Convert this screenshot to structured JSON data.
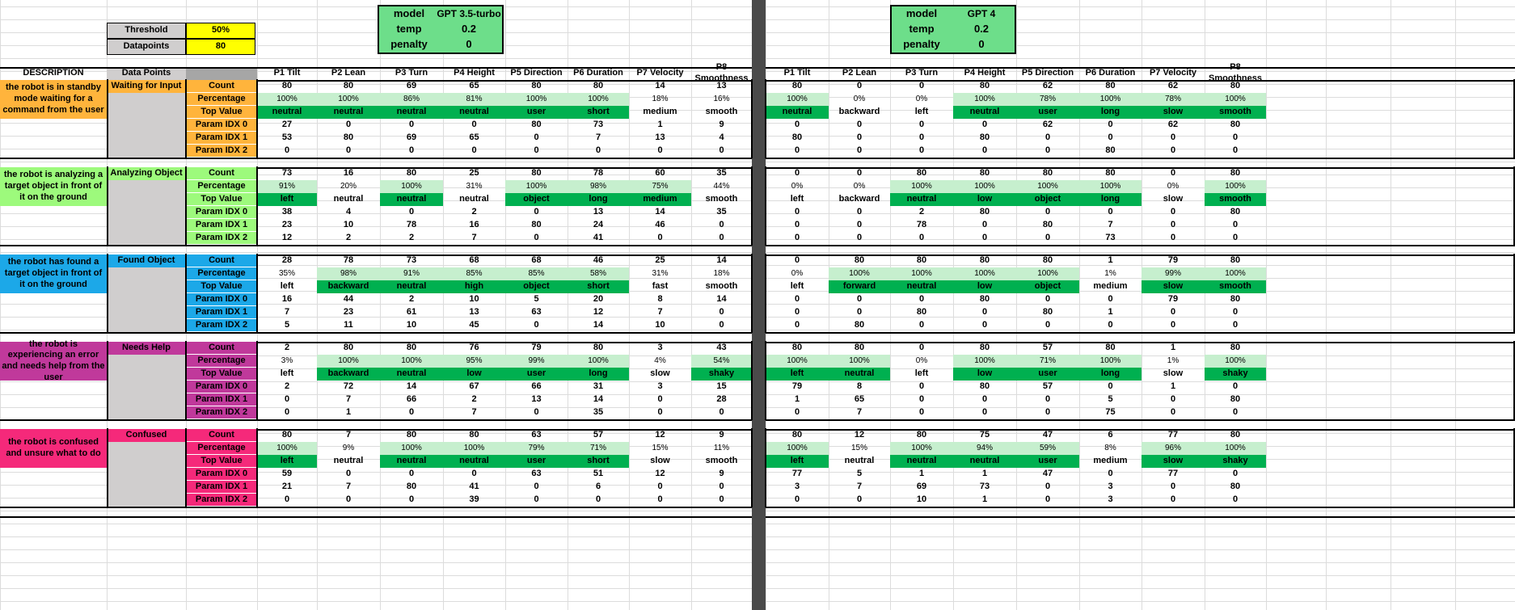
{
  "settings": {
    "threshold_label": "Threshold",
    "threshold_value": "50%",
    "datapoints_label": "Datapoints",
    "datapoints_value": "80"
  },
  "models": [
    {
      "model_label": "model",
      "model": "GPT 3.5-turbo",
      "temp_label": "temp",
      "temp": "0.2",
      "penalty_label": "penalty",
      "penalty": "0"
    },
    {
      "model_label": "model",
      "model": "GPT 4",
      "temp_label": "temp",
      "temp": "0.2",
      "penalty_label": "penalty",
      "penalty": "0"
    }
  ],
  "header": {
    "description": "DESCRIPTION",
    "data_points": "Data Points",
    "params": [
      "P1 Tilt",
      "P2 Lean",
      "P3 Turn",
      "P4 Height",
      "P5 Direction",
      "P6 Duration",
      "P7 Velocity",
      "P8 Smoothness"
    ]
  },
  "row_labels": [
    "Count",
    "Percentage",
    "Top Value",
    "Param IDX 0",
    "Param IDX 1",
    "Param IDX 2"
  ],
  "colors": {
    "light_green": "#c6efce",
    "dark_green": "#00b050",
    "model_green": "#6dde8a",
    "yellow": "#ffff00",
    "grey": "#d0cece",
    "separator": "#4a4a4a"
  },
  "states": [
    {
      "name": "Waiting for Input",
      "description": "the robot is in standby mode waiting for a command from the user",
      "color": "#ffb43c",
      "gpt35": {
        "count": [
          "80",
          "80",
          "69",
          "65",
          "80",
          "80",
          "14",
          "13"
        ],
        "pct": [
          "100%",
          "100%",
          "86%",
          "81%",
          "100%",
          "100%",
          "18%",
          "16%"
        ],
        "top": [
          "neutral",
          "neutral",
          "neutral",
          "neutral",
          "user",
          "short",
          "medium",
          "smooth"
        ],
        "idx0": [
          "27",
          "0",
          "0",
          "0",
          "80",
          "73",
          "1",
          "9"
        ],
        "idx1": [
          "53",
          "80",
          "69",
          "65",
          "0",
          "7",
          "13",
          "4"
        ],
        "idx2": [
          "0",
          "0",
          "0",
          "0",
          "0",
          "0",
          "0",
          "0"
        ]
      },
      "gpt4": {
        "count": [
          "80",
          "0",
          "0",
          "80",
          "62",
          "80",
          "62",
          "80"
        ],
        "pct": [
          "100%",
          "0%",
          "0%",
          "100%",
          "78%",
          "100%",
          "78%",
          "100%"
        ],
        "top": [
          "neutral",
          "backward",
          "left",
          "neutral",
          "user",
          "long",
          "slow",
          "smooth"
        ],
        "idx0": [
          "0",
          "0",
          "0",
          "0",
          "62",
          "0",
          "62",
          "80"
        ],
        "idx1": [
          "80",
          "0",
          "0",
          "80",
          "0",
          "0",
          "0",
          "0"
        ],
        "idx2": [
          "0",
          "0",
          "0",
          "0",
          "0",
          "80",
          "0",
          "0"
        ]
      }
    },
    {
      "name": "Analyzing Object",
      "description": "the robot is analyzing a target object in front of it on the ground",
      "color": "#9dfa7c",
      "gpt35": {
        "count": [
          "73",
          "16",
          "80",
          "25",
          "80",
          "78",
          "60",
          "35"
        ],
        "pct": [
          "91%",
          "20%",
          "100%",
          "31%",
          "100%",
          "98%",
          "75%",
          "44%"
        ],
        "top": [
          "left",
          "neutral",
          "neutral",
          "neutral",
          "object",
          "long",
          "medium",
          "smooth"
        ],
        "idx0": [
          "38",
          "4",
          "0",
          "2",
          "0",
          "13",
          "14",
          "35"
        ],
        "idx1": [
          "23",
          "10",
          "78",
          "16",
          "80",
          "24",
          "46",
          "0"
        ],
        "idx2": [
          "12",
          "2",
          "2",
          "7",
          "0",
          "41",
          "0",
          "0"
        ]
      },
      "gpt4": {
        "count": [
          "0",
          "0",
          "80",
          "80",
          "80",
          "80",
          "0",
          "80"
        ],
        "pct": [
          "0%",
          "0%",
          "100%",
          "100%",
          "100%",
          "100%",
          "0%",
          "100%"
        ],
        "top": [
          "left",
          "backward",
          "neutral",
          "low",
          "object",
          "long",
          "slow",
          "smooth"
        ],
        "idx0": [
          "0",
          "0",
          "2",
          "80",
          "0",
          "0",
          "0",
          "80"
        ],
        "idx1": [
          "0",
          "0",
          "78",
          "0",
          "80",
          "7",
          "0",
          "0"
        ],
        "idx2": [
          "0",
          "0",
          "0",
          "0",
          "0",
          "73",
          "0",
          "0"
        ]
      }
    },
    {
      "name": "Found Object",
      "description": "the robot has found a target object in front of it on the ground",
      "color": "#1ca8e8",
      "gpt35": {
        "count": [
          "28",
          "78",
          "73",
          "68",
          "68",
          "46",
          "25",
          "14"
        ],
        "pct": [
          "35%",
          "98%",
          "91%",
          "85%",
          "85%",
          "58%",
          "31%",
          "18%"
        ],
        "top": [
          "left",
          "backward",
          "neutral",
          "high",
          "object",
          "short",
          "fast",
          "smooth"
        ],
        "idx0": [
          "16",
          "44",
          "2",
          "10",
          "5",
          "20",
          "8",
          "14"
        ],
        "idx1": [
          "7",
          "23",
          "61",
          "13",
          "63",
          "12",
          "7",
          "0"
        ],
        "idx2": [
          "5",
          "11",
          "10",
          "45",
          "0",
          "14",
          "10",
          "0"
        ]
      },
      "gpt4": {
        "count": [
          "0",
          "80",
          "80",
          "80",
          "80",
          "1",
          "79",
          "80"
        ],
        "pct": [
          "0%",
          "100%",
          "100%",
          "100%",
          "100%",
          "1%",
          "99%",
          "100%"
        ],
        "top": [
          "left",
          "forward",
          "neutral",
          "low",
          "object",
          "medium",
          "slow",
          "smooth"
        ],
        "idx0": [
          "0",
          "0",
          "0",
          "80",
          "0",
          "0",
          "79",
          "80"
        ],
        "idx1": [
          "0",
          "0",
          "80",
          "0",
          "80",
          "1",
          "0",
          "0"
        ],
        "idx2": [
          "0",
          "80",
          "0",
          "0",
          "0",
          "0",
          "0",
          "0"
        ]
      }
    },
    {
      "name": "Needs Help",
      "description": "the robot is experiencing an error and needs help from the user",
      "color": "#c0399b",
      "gpt35": {
        "count": [
          "2",
          "80",
          "80",
          "76",
          "79",
          "80",
          "3",
          "43"
        ],
        "pct": [
          "3%",
          "100%",
          "100%",
          "95%",
          "99%",
          "100%",
          "4%",
          "54%"
        ],
        "top": [
          "left",
          "backward",
          "neutral",
          "low",
          "user",
          "long",
          "slow",
          "shaky"
        ],
        "idx0": [
          "2",
          "72",
          "14",
          "67",
          "66",
          "31",
          "3",
          "15"
        ],
        "idx1": [
          "0",
          "7",
          "66",
          "2",
          "13",
          "14",
          "0",
          "28"
        ],
        "idx2": [
          "0",
          "1",
          "0",
          "7",
          "0",
          "35",
          "0",
          "0"
        ]
      },
      "gpt4": {
        "count": [
          "80",
          "80",
          "0",
          "80",
          "57",
          "80",
          "1",
          "80"
        ],
        "pct": [
          "100%",
          "100%",
          "0%",
          "100%",
          "71%",
          "100%",
          "1%",
          "100%"
        ],
        "top": [
          "left",
          "neutral",
          "left",
          "low",
          "user",
          "long",
          "slow",
          "shaky"
        ],
        "idx0": [
          "79",
          "8",
          "0",
          "80",
          "57",
          "0",
          "1",
          "0"
        ],
        "idx1": [
          "1",
          "65",
          "0",
          "0",
          "0",
          "5",
          "0",
          "80"
        ],
        "idx2": [
          "0",
          "7",
          "0",
          "0",
          "0",
          "75",
          "0",
          "0"
        ]
      }
    },
    {
      "name": "Confused",
      "description": "the robot is confused and unsure what to do",
      "color": "#f5297a",
      "gpt35": {
        "count": [
          "80",
          "7",
          "80",
          "80",
          "63",
          "57",
          "12",
          "9"
        ],
        "pct": [
          "100%",
          "9%",
          "100%",
          "100%",
          "79%",
          "71%",
          "15%",
          "11%"
        ],
        "top": [
          "left",
          "neutral",
          "neutral",
          "neutral",
          "user",
          "short",
          "slow",
          "smooth"
        ],
        "idx0": [
          "59",
          "0",
          "0",
          "0",
          "63",
          "51",
          "12",
          "9"
        ],
        "idx1": [
          "21",
          "7",
          "80",
          "41",
          "0",
          "6",
          "0",
          "0"
        ],
        "idx2": [
          "0",
          "0",
          "0",
          "39",
          "0",
          "0",
          "0",
          "0"
        ]
      },
      "gpt4": {
        "count": [
          "80",
          "12",
          "80",
          "75",
          "47",
          "6",
          "77",
          "80"
        ],
        "pct": [
          "100%",
          "15%",
          "100%",
          "94%",
          "59%",
          "8%",
          "96%",
          "100%"
        ],
        "top": [
          "left",
          "neutral",
          "neutral",
          "neutral",
          "user",
          "medium",
          "slow",
          "shaky"
        ],
        "idx0": [
          "77",
          "5",
          "1",
          "1",
          "47",
          "0",
          "77",
          "0"
        ],
        "idx1": [
          "3",
          "7",
          "69",
          "73",
          "0",
          "3",
          "0",
          "80"
        ],
        "idx2": [
          "0",
          "0",
          "10",
          "1",
          "0",
          "3",
          "0",
          "0"
        ]
      }
    }
  ]
}
